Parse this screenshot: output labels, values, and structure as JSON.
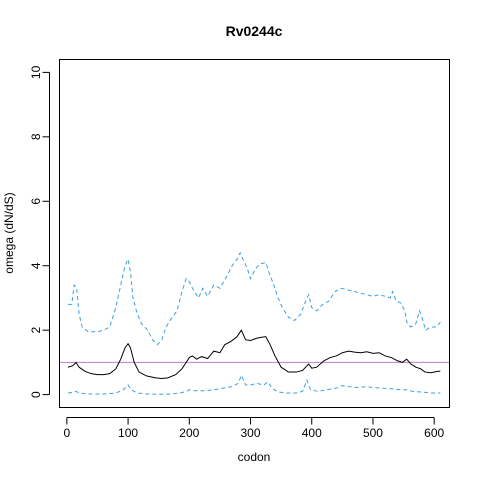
{
  "chart_data": {
    "type": "line",
    "title": "Rv0244c",
    "xlabel": "codon",
    "ylabel": "omega (dN/dS)",
    "xlim": [
      -12,
      625
    ],
    "ylim": [
      -0.4,
      10.4
    ],
    "xticks": [
      0,
      100,
      200,
      300,
      400,
      500,
      600
    ],
    "yticks": [
      0,
      2,
      4,
      6,
      8,
      10
    ],
    "grid": false,
    "reference_line": {
      "y": 1,
      "color": "#c080c0"
    },
    "series": [
      {
        "style": "solid",
        "color": "#000000",
        "points": [
          [
            2,
            0.85
          ],
          [
            10,
            0.9
          ],
          [
            15,
            1.0
          ],
          [
            20,
            0.85
          ],
          [
            30,
            0.72
          ],
          [
            40,
            0.65
          ],
          [
            50,
            0.62
          ],
          [
            60,
            0.62
          ],
          [
            70,
            0.65
          ],
          [
            80,
            0.8
          ],
          [
            88,
            1.1
          ],
          [
            95,
            1.45
          ],
          [
            100,
            1.58
          ],
          [
            104,
            1.45
          ],
          [
            110,
            1.0
          ],
          [
            118,
            0.7
          ],
          [
            130,
            0.58
          ],
          [
            145,
            0.52
          ],
          [
            155,
            0.5
          ],
          [
            165,
            0.52
          ],
          [
            178,
            0.62
          ],
          [
            188,
            0.8
          ],
          [
            195,
            1.0
          ],
          [
            200,
            1.15
          ],
          [
            205,
            1.2
          ],
          [
            212,
            1.1
          ],
          [
            220,
            1.18
          ],
          [
            230,
            1.12
          ],
          [
            240,
            1.35
          ],
          [
            250,
            1.3
          ],
          [
            258,
            1.55
          ],
          [
            268,
            1.65
          ],
          [
            278,
            1.8
          ],
          [
            285,
            2.0
          ],
          [
            292,
            1.7
          ],
          [
            300,
            1.68
          ],
          [
            310,
            1.75
          ],
          [
            318,
            1.78
          ],
          [
            325,
            1.8
          ],
          [
            332,
            1.55
          ],
          [
            340,
            1.2
          ],
          [
            350,
            0.85
          ],
          [
            362,
            0.7
          ],
          [
            375,
            0.7
          ],
          [
            385,
            0.75
          ],
          [
            395,
            0.95
          ],
          [
            400,
            0.82
          ],
          [
            408,
            0.85
          ],
          [
            420,
            1.05
          ],
          [
            430,
            1.15
          ],
          [
            440,
            1.2
          ],
          [
            450,
            1.3
          ],
          [
            460,
            1.35
          ],
          [
            470,
            1.32
          ],
          [
            480,
            1.3
          ],
          [
            490,
            1.33
          ],
          [
            500,
            1.28
          ],
          [
            510,
            1.3
          ],
          [
            520,
            1.2
          ],
          [
            530,
            1.15
          ],
          [
            540,
            1.05
          ],
          [
            548,
            1.0
          ],
          [
            555,
            1.1
          ],
          [
            562,
            0.95
          ],
          [
            570,
            0.85
          ],
          [
            578,
            0.8
          ],
          [
            585,
            0.7
          ],
          [
            595,
            0.68
          ],
          [
            605,
            0.72
          ],
          [
            610,
            0.73
          ]
        ]
      },
      {
        "style": "dashed",
        "color": "#3aa0e0",
        "points": [
          [
            2,
            2.8
          ],
          [
            8,
            2.8
          ],
          [
            12,
            3.4
          ],
          [
            16,
            3.3
          ],
          [
            20,
            2.5
          ],
          [
            25,
            2.1
          ],
          [
            35,
            1.95
          ],
          [
            50,
            1.95
          ],
          [
            60,
            2.0
          ],
          [
            70,
            2.1
          ],
          [
            80,
            2.7
          ],
          [
            88,
            3.4
          ],
          [
            95,
            4.0
          ],
          [
            100,
            4.2
          ],
          [
            104,
            3.8
          ],
          [
            108,
            3.0
          ],
          [
            115,
            2.5
          ],
          [
            122,
            2.2
          ],
          [
            132,
            2.0
          ],
          [
            140,
            1.7
          ],
          [
            148,
            1.55
          ],
          [
            155,
            1.7
          ],
          [
            162,
            2.1
          ],
          [
            172,
            2.4
          ],
          [
            180,
            2.6
          ],
          [
            188,
            3.2
          ],
          [
            195,
            3.6
          ],
          [
            200,
            3.5
          ],
          [
            208,
            3.2
          ],
          [
            215,
            3.0
          ],
          [
            222,
            3.3
          ],
          [
            230,
            3.05
          ],
          [
            240,
            3.4
          ],
          [
            250,
            3.3
          ],
          [
            262,
            3.7
          ],
          [
            270,
            4.0
          ],
          [
            278,
            4.2
          ],
          [
            283,
            4.4
          ],
          [
            290,
            4.1
          ],
          [
            295,
            3.9
          ],
          [
            300,
            3.6
          ],
          [
            308,
            3.9
          ],
          [
            315,
            4.05
          ],
          [
            325,
            4.1
          ],
          [
            330,
            3.8
          ],
          [
            338,
            3.4
          ],
          [
            345,
            3.0
          ],
          [
            352,
            2.7
          ],
          [
            362,
            2.4
          ],
          [
            372,
            2.3
          ],
          [
            382,
            2.5
          ],
          [
            390,
            2.9
          ],
          [
            395,
            3.1
          ],
          [
            400,
            2.7
          ],
          [
            408,
            2.6
          ],
          [
            418,
            2.8
          ],
          [
            428,
            2.9
          ],
          [
            438,
            3.2
          ],
          [
            448,
            3.3
          ],
          [
            458,
            3.25
          ],
          [
            470,
            3.2
          ],
          [
            480,
            3.15
          ],
          [
            490,
            3.1
          ],
          [
            500,
            3.05
          ],
          [
            510,
            3.1
          ],
          [
            520,
            3.05
          ],
          [
            528,
            3.0
          ],
          [
            532,
            3.2
          ],
          [
            538,
            2.9
          ],
          [
            545,
            2.85
          ],
          [
            552,
            2.6
          ],
          [
            556,
            2.2
          ],
          [
            562,
            2.1
          ],
          [
            570,
            2.2
          ],
          [
            576,
            2.6
          ],
          [
            580,
            2.4
          ],
          [
            586,
            2.0
          ],
          [
            594,
            2.1
          ],
          [
            602,
            2.1
          ],
          [
            608,
            2.2
          ],
          [
            610,
            2.25
          ]
        ]
      },
      {
        "style": "dashed",
        "color": "#3aa0e0",
        "points": [
          [
            2,
            0.05
          ],
          [
            10,
            0.07
          ],
          [
            15,
            0.1
          ],
          [
            20,
            0.05
          ],
          [
            35,
            0.02
          ],
          [
            60,
            0.02
          ],
          [
            80,
            0.05
          ],
          [
            92,
            0.15
          ],
          [
            100,
            0.3
          ],
          [
            105,
            0.15
          ],
          [
            115,
            0.05
          ],
          [
            130,
            0.02
          ],
          [
            150,
            0.01
          ],
          [
            170,
            0.02
          ],
          [
            185,
            0.05
          ],
          [
            195,
            0.1
          ],
          [
            200,
            0.15
          ],
          [
            210,
            0.12
          ],
          [
            225,
            0.12
          ],
          [
            240,
            0.15
          ],
          [
            255,
            0.2
          ],
          [
            270,
            0.25
          ],
          [
            280,
            0.35
          ],
          [
            285,
            0.6
          ],
          [
            292,
            0.3
          ],
          [
            300,
            0.3
          ],
          [
            310,
            0.35
          ],
          [
            322,
            0.3
          ],
          [
            328,
            0.4
          ],
          [
            335,
            0.2
          ],
          [
            345,
            0.08
          ],
          [
            360,
            0.05
          ],
          [
            375,
            0.05
          ],
          [
            385,
            0.1
          ],
          [
            392,
            0.45
          ],
          [
            398,
            0.15
          ],
          [
            410,
            0.1
          ],
          [
            425,
            0.15
          ],
          [
            440,
            0.2
          ],
          [
            450,
            0.28
          ],
          [
            460,
            0.25
          ],
          [
            475,
            0.22
          ],
          [
            490,
            0.25
          ],
          [
            500,
            0.22
          ],
          [
            515,
            0.2
          ],
          [
            530,
            0.18
          ],
          [
            545,
            0.15
          ],
          [
            555,
            0.15
          ],
          [
            565,
            0.1
          ],
          [
            580,
            0.08
          ],
          [
            595,
            0.05
          ],
          [
            605,
            0.05
          ],
          [
            610,
            0.05
          ]
        ]
      }
    ]
  }
}
